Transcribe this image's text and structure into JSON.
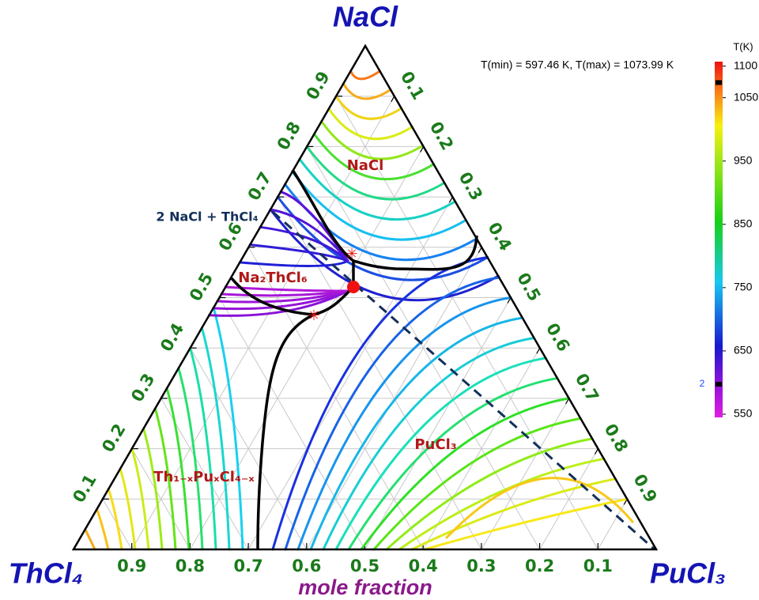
{
  "chart_data": {
    "type": "ternary",
    "vertices": [
      "NaCl",
      "ThCl₄",
      "PuCl₃"
    ],
    "axis_label": "mole fraction",
    "bottom_ticks": [
      0.9,
      0.8,
      0.7,
      0.6,
      0.5,
      0.4,
      0.3,
      0.2,
      0.1
    ],
    "left_ticks": [
      0.1,
      0.2,
      0.3,
      0.4,
      0.5,
      0.6,
      0.7,
      0.8,
      0.9
    ],
    "right_ticks": [
      0.1,
      0.2,
      0.3,
      0.4,
      0.5,
      0.6,
      0.7,
      0.8,
      0.9
    ],
    "annotation": "T(min) = 597.46 K, T(max) = 1073.99 K",
    "phase_labels": [
      "NaCl",
      "Na₂ThCl₆",
      "Th₁₋ₓPuₓCl₄₋ₓ",
      "PuCl₃"
    ],
    "line_label": "2 NaCl + ThCl₄",
    "colorbar": {
      "title": "T(K)",
      "lim": [
        545,
        1107
      ],
      "ticks": [
        550,
        650,
        750,
        850,
        950,
        1050,
        1100
      ],
      "markers": [
        597.46,
        1073.99
      ],
      "marker_label": "2"
    },
    "grid": true
  }
}
